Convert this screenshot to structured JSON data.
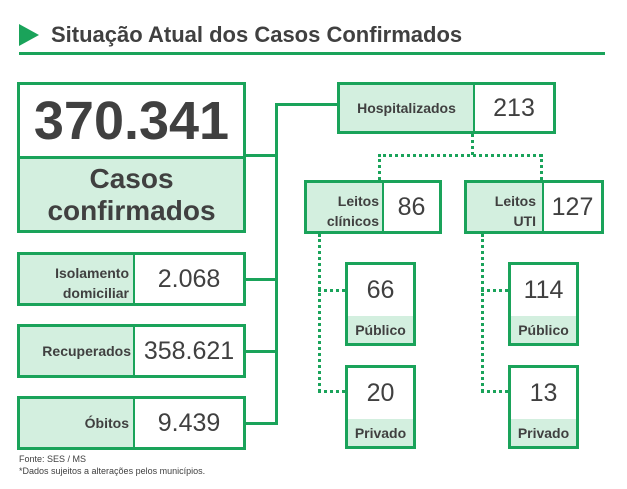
{
  "header": {
    "title": "Situação Atual dos Casos Confirmados",
    "accent_color": "#1aa35a"
  },
  "total": {
    "value": "370.341",
    "label_line1": "Casos",
    "label_line2": "confirmados"
  },
  "summary": [
    {
      "label_line1": "Isolamento",
      "label_line2": "domiciliar",
      "value": "2.068"
    },
    {
      "label_line1": "Recuperados",
      "label_line2": "",
      "value": "358.621"
    },
    {
      "label_line1": "Óbitos",
      "label_line2": "",
      "value": "9.439"
    }
  ],
  "hospital": {
    "label": "Hospitalizados",
    "value": "213"
  },
  "beds": [
    {
      "label_line1": "Leitos",
      "label_line2": "clínicos",
      "value": "86",
      "public_value": "66",
      "public_label": "Público",
      "private_value": "20",
      "private_label": "Privado"
    },
    {
      "label_line1": "Leitos",
      "label_line2": "UTI",
      "value": "127",
      "public_value": "114",
      "public_label": "Público",
      "private_value": "13",
      "private_label": "Privado"
    }
  ],
  "footer": {
    "source": "Fonte: SES / MS",
    "note": "*Dados sujeitos a alterações pelos municípios."
  }
}
